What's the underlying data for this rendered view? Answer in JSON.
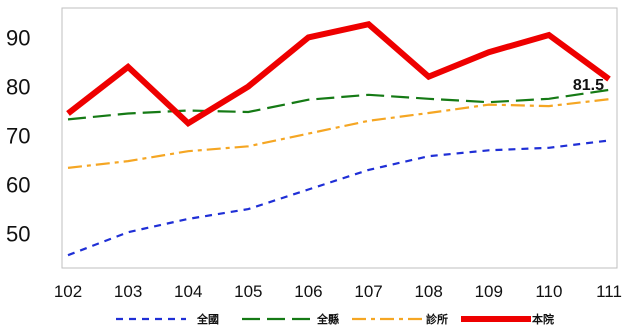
{
  "chart_data": {
    "type": "line",
    "x": [
      "102",
      "103",
      "104",
      "105",
      "106",
      "107",
      "108",
      "109",
      "110",
      "111"
    ],
    "ylim": [
      43,
      96
    ],
    "yticks": [
      50,
      60,
      70,
      80,
      90
    ],
    "grid": false,
    "legend_position": "bottom",
    "series": [
      {
        "name": "全國",
        "values": [
          45.6,
          50.3,
          53.0,
          55.0,
          59.0,
          63.0,
          65.8,
          67.0,
          67.5,
          69.0
        ],
        "color": "#1f2fd6",
        "style": "dash"
      },
      {
        "name": "全縣",
        "values": [
          73.3,
          74.5,
          75.1,
          74.8,
          77.3,
          78.3,
          77.5,
          76.8,
          77.5,
          79.3
        ],
        "color": "#157a15",
        "style": "longdash"
      },
      {
        "name": "診所",
        "values": [
          63.4,
          64.8,
          66.8,
          67.8,
          70.4,
          73.0,
          74.6,
          76.3,
          76.0,
          77.4
        ],
        "color": "#f5a623",
        "style": "dashdot"
      },
      {
        "name": "本院",
        "values": [
          74.5,
          84.0,
          72.5,
          80.0,
          90.0,
          92.7,
          82.0,
          87.0,
          90.5,
          81.5
        ],
        "color": "#ee0000",
        "style": "solid"
      }
    ],
    "data_labels": [
      {
        "series": "本院",
        "x": "111",
        "text": "81.5"
      }
    ]
  }
}
